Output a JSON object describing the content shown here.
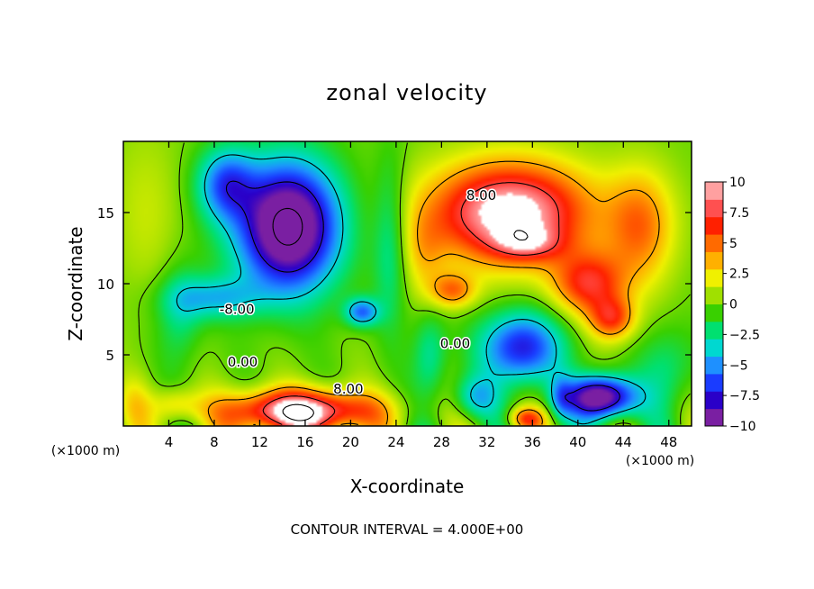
{
  "chart_data": {
    "type": "heatmap",
    "title": "zonal velocity",
    "xlabel": "X-coordinate",
    "ylabel": "Z-coordinate",
    "x_unit_left": "(×1000 m)",
    "x_unit_right": "(×1000 m)",
    "footer": "CONTOUR INTERVAL = 4.000E+00",
    "xlim": [
      0,
      50
    ],
    "ylim": [
      0,
      20
    ],
    "x_ticks": [
      4,
      8,
      12,
      16,
      20,
      24,
      28,
      32,
      36,
      40,
      44,
      48
    ],
    "y_ticks": [
      5,
      10,
      15
    ],
    "colorbar": {
      "range": [
        -10,
        10
      ],
      "ticks": [
        "10",
        "7.5",
        "5",
        "2.5",
        "0",
        "−2.5",
        "−5",
        "−7.5",
        "−10"
      ],
      "colors": [
        "#7a1fa2",
        "#2a00c8",
        "#1a3cff",
        "#1e90ff",
        "#00d8d0",
        "#00e070",
        "#39d000",
        "#a0e000",
        "#f0f000",
        "#ffb000",
        "#ff6a00",
        "#ff2000",
        "#ff5050",
        "#ffa0a0"
      ]
    },
    "contour_interval": 4.0,
    "contour_labels": [
      {
        "text": "8.00",
        "x": 31.5,
        "z": 16.2
      },
      {
        "text": "-8.00",
        "x": 10.0,
        "z": 8.2
      },
      {
        "text": "0.00",
        "x": 10.5,
        "z": 4.5
      },
      {
        "text": "0.00",
        "x": 29.2,
        "z": 5.8
      },
      {
        "text": "8.00",
        "x": 19.8,
        "z": 2.6
      }
    ],
    "features": [
      {
        "kind": "jet",
        "x": 34.0,
        "z": 15.0,
        "sx": 7.0,
        "sz": 3.5,
        "value": 11.5
      },
      {
        "kind": "jet",
        "x": 35.5,
        "z": 12.8,
        "sx": 3.0,
        "sz": 1.2,
        "value": 4.0
      },
      {
        "kind": "jet",
        "x": 41.0,
        "z": 10.0,
        "sx": 3.2,
        "sz": 2.2,
        "value": 7.0
      },
      {
        "kind": "jet",
        "x": 43.0,
        "z": 7.5,
        "sx": 2.0,
        "sz": 1.5,
        "value": 6.0
      },
      {
        "kind": "jet",
        "x": 45.5,
        "z": 14.0,
        "sx": 3.0,
        "sz": 4.0,
        "value": 5.0
      },
      {
        "kind": "jet",
        "x": 15.5,
        "z": 1.0,
        "sx": 6.5,
        "sz": 1.5,
        "value": 12.0
      },
      {
        "kind": "jet",
        "x": 29.0,
        "z": 9.5,
        "sx": 2.0,
        "sz": 1.2,
        "value": 5.0
      },
      {
        "kind": "jet",
        "x": 35.5,
        "z": 0.5,
        "sx": 1.5,
        "sz": 0.8,
        "value": 6.0
      },
      {
        "kind": "jet",
        "x": 4.5,
        "z": 1.5,
        "sx": 2.0,
        "sz": 1.2,
        "value": 3.0
      },
      {
        "kind": "jet",
        "x": 26.5,
        "z": 12.0,
        "sx": 2.0,
        "sz": 3.0,
        "value": 2.5
      },
      {
        "kind": "jet",
        "x": 1.0,
        "z": 1.5,
        "sx": 1.5,
        "sz": 2.0,
        "value": 2.0
      },
      {
        "kind": "jet",
        "x": 2.0,
        "z": 15.0,
        "sx": 3.0,
        "sz": 6.0,
        "value": 1.5
      },
      {
        "kind": "vortex",
        "x": 14.5,
        "z": 14.0,
        "sx": 4.5,
        "sz": 4.5,
        "value": -13.0
      },
      {
        "kind": "vortex",
        "x": 9.0,
        "z": 17.0,
        "sx": 2.5,
        "sz": 2.5,
        "value": -6.0
      },
      {
        "kind": "vortex",
        "x": 35.0,
        "z": 5.5,
        "sx": 3.5,
        "sz": 2.5,
        "value": -8.0
      },
      {
        "kind": "vortex",
        "x": 42.0,
        "z": 2.0,
        "sx": 3.0,
        "sz": 1.5,
        "value": -12.0
      },
      {
        "kind": "vortex",
        "x": 8.0,
        "z": 9.0,
        "sx": 4.0,
        "sz": 1.5,
        "value": -4.0
      },
      {
        "kind": "vortex",
        "x": 21.0,
        "z": 8.0,
        "sx": 1.5,
        "sz": 1.0,
        "value": -6.0
      },
      {
        "kind": "vortex",
        "x": 23.5,
        "z": 13.0,
        "sx": 1.5,
        "sz": 6.0,
        "value": -3.0
      },
      {
        "kind": "vortex",
        "x": 27.0,
        "z": 5.0,
        "sx": 1.5,
        "sz": 3.0,
        "value": -3.0
      },
      {
        "kind": "vortex",
        "x": 5.0,
        "z": 8.0,
        "sx": 2.0,
        "sz": 3.5,
        "value": -2.5
      },
      {
        "kind": "vortex",
        "x": 31.0,
        "z": 2.0,
        "sx": 2.0,
        "sz": 1.5,
        "value": -4.0
      },
      {
        "kind": "vortex",
        "x": 48.0,
        "z": 4.0,
        "sx": 2.5,
        "sz": 3.0,
        "value": -2.5
      },
      {
        "kind": "vortex",
        "x": 38.5,
        "z": 2.0,
        "sx": 1.0,
        "sz": 1.5,
        "value": -3.0
      }
    ]
  }
}
